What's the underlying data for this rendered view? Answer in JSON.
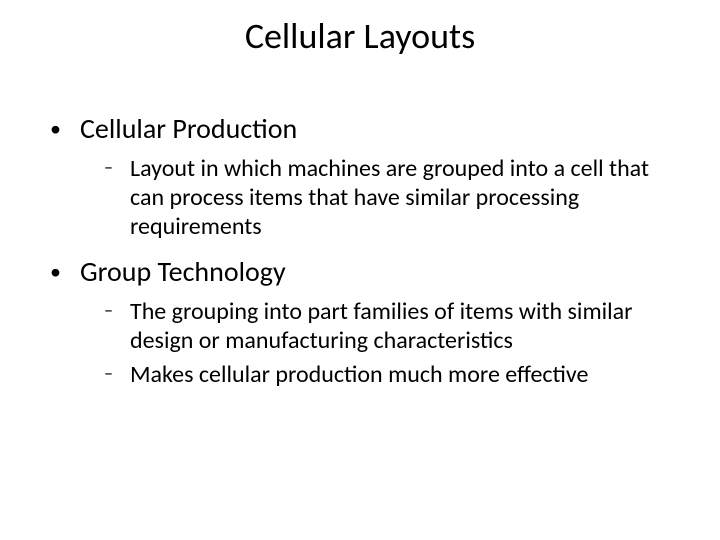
{
  "slide": {
    "title": "Cellular Layouts",
    "background_color": "#ffffff",
    "text_color": "#000000",
    "title_fontsize": 36,
    "l1_fontsize": 28,
    "l2_fontsize": 24,
    "l1_bullet": "•",
    "l2_bullet": "–",
    "items": [
      {
        "label": "Cellular Production",
        "sub": [
          "Layout in which machines are grouped into a cell that can process items that have similar processing requirements"
        ]
      },
      {
        "label": "Group Technology",
        "sub": [
          "The grouping into part families of items with similar design or manufacturing characteristics",
          "Makes cellular production much more effective"
        ]
      }
    ]
  }
}
